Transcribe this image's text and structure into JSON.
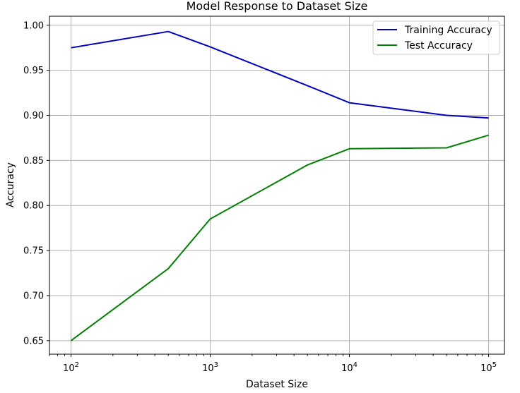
{
  "chart_data": {
    "type": "line",
    "title": "Model Response to Dataset Size",
    "xlabel": "Dataset Size",
    "ylabel": "Accuracy",
    "xscale": "log",
    "xlim": [
      70,
      130000
    ],
    "ylim": [
      0.635,
      1.01
    ],
    "xticks": [
      {
        "value": 100,
        "base": "10",
        "exp": "2"
      },
      {
        "value": 1000,
        "base": "10",
        "exp": "3"
      },
      {
        "value": 10000,
        "base": "10",
        "exp": "4"
      },
      {
        "value": 100000,
        "base": "10",
        "exp": "5"
      }
    ],
    "yticks": [
      0.65,
      0.7,
      0.75,
      0.8,
      0.85,
      0.9,
      0.95,
      1.0
    ],
    "ytick_labels": [
      "0.65",
      "0.70",
      "0.75",
      "0.80",
      "0.85",
      "0.90",
      "0.95",
      "1.00"
    ],
    "grid": true,
    "legend_position": "top-right",
    "x": [
      100,
      500,
      1000,
      5000,
      10000,
      50000,
      100000
    ],
    "series": [
      {
        "name": "Training Accuracy",
        "color": "#0000bf",
        "values": [
          0.975,
          0.993,
          0.976,
          0.933,
          0.914,
          0.9,
          0.897
        ]
      },
      {
        "name": "Test Accuracy",
        "color": "#007f00",
        "values": [
          0.65,
          0.73,
          0.785,
          0.845,
          0.863,
          0.864,
          0.878
        ]
      }
    ]
  }
}
